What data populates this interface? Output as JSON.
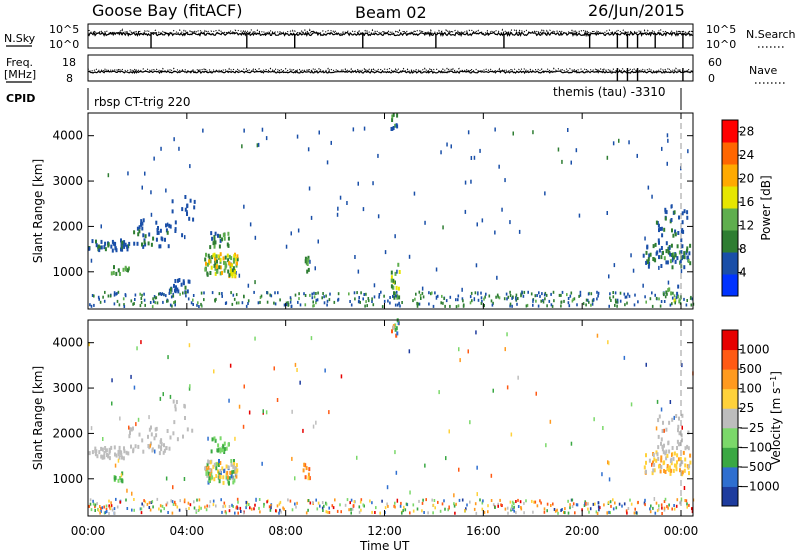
{
  "header": {
    "station": "Goose Bay (fitACF)",
    "beam": "Beam 02",
    "date": "26/Jun/2015"
  },
  "aux_panels": {
    "noise": {
      "left_label": "N.Sky",
      "left_ticks": [
        "10^5",
        "10^0"
      ],
      "right_label": "N.Search",
      "right_ticks": [
        "10^5",
        "10^0"
      ]
    },
    "freq": {
      "left_label": "Freq.",
      "left_unit": "[MHz]",
      "left_ticks": [
        "18",
        "8"
      ],
      "right_label": "Nave",
      "right_ticks": [
        "60",
        "0"
      ]
    },
    "cpid": {
      "label": "CPID",
      "left_text": "rbsp CT-trig 220",
      "right_text": "themis (tau) -3310"
    }
  },
  "chart_data": [
    {
      "type": "heatmap",
      "name": "power",
      "ylabel": "Slant Range [km]",
      "xlabel": "",
      "ylim": [
        180,
        4500
      ],
      "xlim": [
        0,
        24
      ],
      "y_ticks": [
        1000,
        2000,
        3000,
        4000
      ],
      "x_ticks": [
        "00:00",
        "04:00",
        "08:00",
        "12:00",
        "16:00",
        "20:00",
        "00:00"
      ],
      "colorbar": {
        "label": "Power [dB]",
        "ticks": [
          4,
          8,
          12,
          16,
          20,
          24,
          28
        ],
        "range": [
          0,
          30
        ],
        "colors": [
          "#0033ff",
          "#1a4fa8",
          "#2e7d32",
          "#5fae4e",
          "#e6e600",
          "#ffaa00",
          "#ff6600",
          "#ff0000"
        ]
      },
      "blobs": [
        {
          "t0": 0.0,
          "t1": 1.6,
          "r0": 1400,
          "r1": 1650,
          "n": 45,
          "v": [
            4,
            9
          ]
        },
        {
          "t0": 1.6,
          "t1": 3.2,
          "r0": 1500,
          "r1": 2100,
          "n": 40,
          "v": [
            4,
            8
          ]
        },
        {
          "t0": 3.2,
          "t1": 4.2,
          "r0": 1700,
          "r1": 2700,
          "n": 18,
          "v": [
            4,
            7
          ]
        },
        {
          "t0": 0.9,
          "t1": 1.6,
          "r0": 900,
          "r1": 1100,
          "n": 12,
          "v": [
            8,
            13
          ]
        },
        {
          "t0": 3.2,
          "t1": 4.0,
          "r0": 500,
          "r1": 800,
          "n": 22,
          "v": [
            4,
            8
          ]
        },
        {
          "t0": 4.6,
          "t1": 5.9,
          "r0": 850,
          "r1": 1350,
          "n": 90,
          "v": [
            6,
            22
          ]
        },
        {
          "t0": 4.8,
          "t1": 5.6,
          "r0": 1500,
          "r1": 1850,
          "n": 22,
          "v": [
            6,
            14
          ]
        },
        {
          "t0": 8.5,
          "t1": 8.8,
          "r0": 950,
          "r1": 1300,
          "n": 10,
          "v": [
            8,
            14
          ]
        },
        {
          "t0": 12.0,
          "t1": 12.3,
          "r0": 4100,
          "r1": 4450,
          "n": 10,
          "v": [
            4,
            14
          ]
        },
        {
          "t0": 12.0,
          "t1": 12.35,
          "r0": 200,
          "r1": 1150,
          "n": 20,
          "v": [
            8,
            16
          ]
        },
        {
          "t0": 22.0,
          "t1": 23.9,
          "r0": 1050,
          "r1": 1550,
          "n": 70,
          "v": [
            4,
            12
          ]
        },
        {
          "t0": 22.5,
          "t1": 23.8,
          "r0": 1550,
          "r1": 2350,
          "n": 35,
          "v": [
            4,
            8
          ]
        },
        {
          "t0": 22.8,
          "t1": 23.5,
          "r0": 300,
          "r1": 650,
          "n": 12,
          "v": [
            4,
            16
          ]
        }
      ],
      "ground_band": {
        "t0": 0.0,
        "t1": 24.0,
        "r0": 200,
        "r1": 520,
        "n": 420,
        "v": [
          4,
          12
        ]
      },
      "scatter": {
        "t0": 0.0,
        "t1": 24.0,
        "r0": 300,
        "r1": 4200,
        "n": 130,
        "v": [
          4,
          8
        ]
      }
    },
    {
      "type": "heatmap",
      "name": "velocity",
      "ylabel": "Slant Range [km]",
      "xlabel": "Time UT",
      "ylim": [
        180,
        4500
      ],
      "xlim": [
        0,
        24
      ],
      "y_ticks": [
        1000,
        2000,
        3000,
        4000
      ],
      "x_ticks": [
        "00:00",
        "04:00",
        "08:00",
        "12:00",
        "16:00",
        "20:00",
        "00:00"
      ],
      "colorbar": {
        "label": "Velocity [m s^-1]",
        "ticks": [
          "1000",
          "500",
          "100",
          "25",
          "-25",
          "-100",
          "-500",
          "-1000"
        ],
        "colors": [
          "#1e3c9e",
          "#2f6fd0",
          "#3aa843",
          "#7bd86a",
          "#bdbdbd",
          "#ffd23a",
          "#ff9a1f",
          "#ff5a14",
          "#e60000"
        ]
      },
      "blobs": [
        {
          "t0": 0.0,
          "t1": 1.6,
          "r0": 1400,
          "r1": 1650,
          "n": 45,
          "v": [
            4,
            4
          ]
        },
        {
          "t0": 1.6,
          "t1": 3.2,
          "r0": 1500,
          "r1": 2100,
          "n": 40,
          "v": [
            4,
            4
          ]
        },
        {
          "t0": 3.2,
          "t1": 4.2,
          "r0": 1700,
          "r1": 2700,
          "n": 14,
          "v": [
            4,
            4
          ]
        },
        {
          "t0": 0.9,
          "t1": 1.6,
          "r0": 900,
          "r1": 1100,
          "n": 10,
          "v": [
            2,
            3
          ]
        },
        {
          "t0": 4.6,
          "t1": 5.9,
          "r0": 850,
          "r1": 1350,
          "n": 90,
          "v": [
            1,
            6
          ]
        },
        {
          "t0": 4.8,
          "t1": 5.6,
          "r0": 1500,
          "r1": 1850,
          "n": 22,
          "v": [
            2,
            3
          ]
        },
        {
          "t0": 8.5,
          "t1": 8.8,
          "r0": 950,
          "r1": 1300,
          "n": 10,
          "v": [
            5,
            7
          ]
        },
        {
          "t0": 12.0,
          "t1": 12.3,
          "r0": 4100,
          "r1": 4450,
          "n": 12,
          "v": [
            0,
            8
          ]
        },
        {
          "t0": 22.0,
          "t1": 23.9,
          "r0": 1050,
          "r1": 1550,
          "n": 70,
          "v": [
            4,
            6
          ]
        },
        {
          "t0": 22.5,
          "t1": 23.8,
          "r0": 1550,
          "r1": 2350,
          "n": 35,
          "v": [
            4,
            4
          ]
        }
      ],
      "ground_band": {
        "t0": 0.0,
        "t1": 24.0,
        "r0": 200,
        "r1": 520,
        "n": 420,
        "v": [
          0,
          8
        ]
      },
      "scatter": {
        "t0": 0.0,
        "t1": 24.0,
        "r0": 300,
        "r1": 4200,
        "n": 120,
        "v": [
          0,
          8
        ]
      }
    }
  ]
}
